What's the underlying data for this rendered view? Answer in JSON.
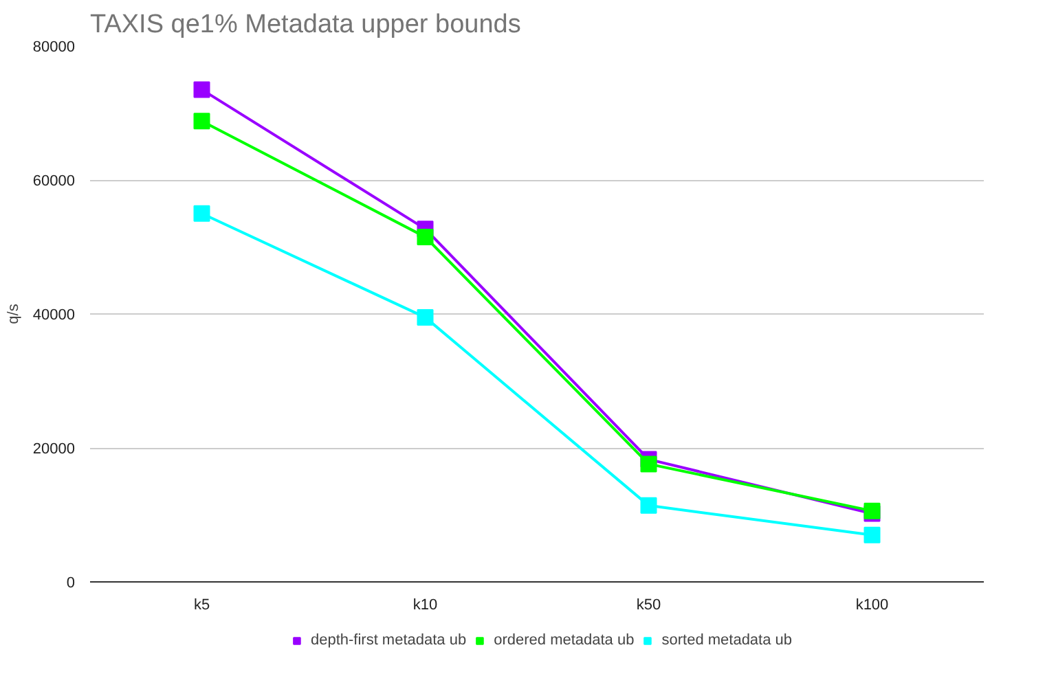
{
  "chart_data": {
    "type": "line",
    "title": "TAXIS qe1% Metadata upper bounds",
    "ylabel": "q/s",
    "categories": [
      "k5",
      "k10",
      "k50",
      "k100"
    ],
    "series": [
      {
        "name": "depth-first metadata ub",
        "color": "#9900ff",
        "values": [
          73500,
          52700,
          18300,
          10200
        ]
      },
      {
        "name": "ordered metadata ub",
        "color": "#00ff00",
        "values": [
          68800,
          51500,
          17600,
          10600
        ]
      },
      {
        "name": "sorted metadata ub",
        "color": "#00ffff",
        "values": [
          55000,
          39500,
          11400,
          7000
        ]
      }
    ],
    "ylim": [
      0,
      80000
    ],
    "yticks": [
      0,
      20000,
      40000,
      60000,
      80000
    ],
    "grid": "y",
    "legend": "bottom",
    "marker": "square",
    "line_style": "solid"
  }
}
